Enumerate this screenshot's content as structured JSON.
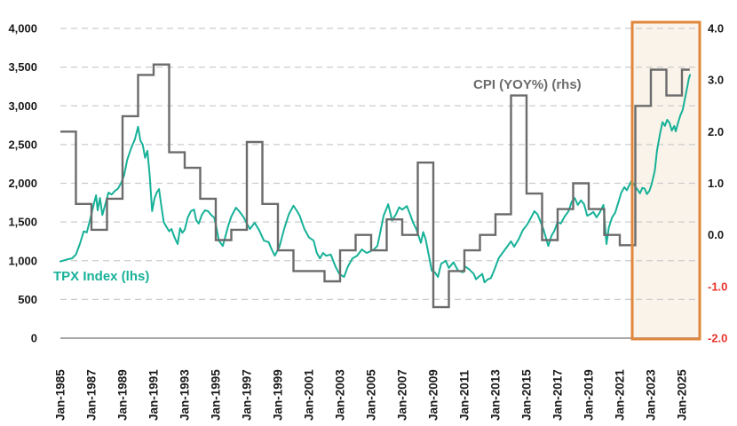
{
  "page": {
    "background": "#ffffff"
  },
  "chart_data": {
    "type": "line",
    "title": "",
    "x_axis": {
      "tick_labels": [
        "Jan-1985",
        "Jan-1987",
        "Jan-1989",
        "Jan-1991",
        "Jan-1993",
        "Jan-1995",
        "Jan-1997",
        "Jan-1999",
        "Jan-2001",
        "Jan-2003",
        "Jan-2005",
        "Jan-2007",
        "Jan-2009",
        "Jan-2011",
        "Jan-2013",
        "Jan-2015",
        "Jan-2017",
        "Jan-2019",
        "Jan-2021",
        "Jan-2023",
        "Jan-2025"
      ],
      "tick_years": [
        1985,
        1987,
        1989,
        1991,
        1993,
        1995,
        1997,
        1999,
        2001,
        2003,
        2005,
        2007,
        2009,
        2011,
        2013,
        2015,
        2017,
        2019,
        2021,
        2023,
        2025
      ],
      "range_years": [
        1985.0,
        2026.17
      ],
      "label_color": "#1a1a1a"
    },
    "left_axis": {
      "label": "TPX Index (lhs)",
      "min": 0,
      "max": 4000,
      "tick_values": [
        0,
        500,
        1000,
        1500,
        2000,
        2500,
        3000,
        3500,
        4000
      ],
      "tick_labels": [
        "0",
        "500",
        "1,000",
        "1,500",
        "2,000",
        "2,500",
        "3,000",
        "3,500",
        "4,000"
      ],
      "label_color": "#17b198",
      "tick_color": "#1a1a1a"
    },
    "right_axis": {
      "label": "CPI (YOY%) (rhs)",
      "min": -2.0,
      "max": 4.0,
      "tick_values": [
        4.0,
        3.0,
        2.0,
        1.0,
        0.0,
        -1.0,
        -2.0
      ],
      "tick_labels": [
        "4.0",
        "3.0",
        "2.0",
        "1.0",
        "0.0",
        "-1.0",
        "-2.0"
      ],
      "label_color": "#6b6b6b",
      "tick_color": "#1a1a1a",
      "negative_tick_color": "#e8332c"
    },
    "grid": {
      "color": "#cccccc",
      "dashed": true
    },
    "axis_line_color": "#a8a8a8",
    "highlight_region": {
      "start_year": 2021.8,
      "end_year": 2026.17,
      "fill": "#faf3e9",
      "border_color": "#e0873c"
    },
    "series": [
      {
        "name": "TPX Index",
        "axis": "left",
        "type": "line",
        "color": "#17b198",
        "stroke_width": 2,
        "points": [
          [
            1985.0,
            990
          ],
          [
            1985.25,
            1005
          ],
          [
            1985.5,
            1020
          ],
          [
            1985.75,
            1030
          ],
          [
            1986.0,
            1080
          ],
          [
            1986.25,
            1215
          ],
          [
            1986.5,
            1380
          ],
          [
            1986.7,
            1365
          ],
          [
            1987.0,
            1600
          ],
          [
            1987.15,
            1730
          ],
          [
            1987.3,
            1845
          ],
          [
            1987.4,
            1650
          ],
          [
            1987.55,
            1810
          ],
          [
            1987.7,
            1590
          ],
          [
            1987.85,
            1700
          ],
          [
            1988.1,
            1880
          ],
          [
            1988.3,
            1855
          ],
          [
            1988.5,
            1900
          ],
          [
            1988.7,
            1930
          ],
          [
            1988.9,
            2000
          ],
          [
            1989.1,
            2100
          ],
          [
            1989.3,
            2300
          ],
          [
            1989.55,
            2450
          ],
          [
            1989.8,
            2570
          ],
          [
            1990.0,
            2730
          ],
          [
            1990.15,
            2550
          ],
          [
            1990.3,
            2500
          ],
          [
            1990.45,
            2330
          ],
          [
            1990.6,
            2420
          ],
          [
            1990.75,
            2100
          ],
          [
            1990.9,
            1640
          ],
          [
            1991.05,
            1800
          ],
          [
            1991.2,
            1880
          ],
          [
            1991.35,
            1925
          ],
          [
            1991.5,
            1700
          ],
          [
            1991.65,
            1500
          ],
          [
            1991.8,
            1445
          ],
          [
            1992.0,
            1380
          ],
          [
            1992.15,
            1410
          ],
          [
            1992.35,
            1300
          ],
          [
            1992.55,
            1215
          ],
          [
            1992.7,
            1420
          ],
          [
            1992.85,
            1360
          ],
          [
            1993.0,
            1400
          ],
          [
            1993.2,
            1560
          ],
          [
            1993.4,
            1640
          ],
          [
            1993.6,
            1660
          ],
          [
            1993.75,
            1520
          ],
          [
            1993.9,
            1480
          ],
          [
            1994.1,
            1590
          ],
          [
            1994.3,
            1650
          ],
          [
            1994.5,
            1640
          ],
          [
            1994.7,
            1590
          ],
          [
            1994.9,
            1555
          ],
          [
            1995.05,
            1420
          ],
          [
            1995.2,
            1260
          ],
          [
            1995.45,
            1190
          ],
          [
            1995.6,
            1300
          ],
          [
            1995.8,
            1450
          ],
          [
            1996.0,
            1570
          ],
          [
            1996.3,
            1685
          ],
          [
            1996.5,
            1640
          ],
          [
            1996.8,
            1560
          ],
          [
            1997.0,
            1480
          ],
          [
            1997.2,
            1410
          ],
          [
            1997.5,
            1490
          ],
          [
            1997.8,
            1390
          ],
          [
            1998.1,
            1260
          ],
          [
            1998.4,
            1240
          ],
          [
            1998.6,
            1145
          ],
          [
            1998.8,
            1065
          ],
          [
            1999.1,
            1180
          ],
          [
            1999.4,
            1410
          ],
          [
            1999.7,
            1600
          ],
          [
            2000.0,
            1710
          ],
          [
            2000.2,
            1650
          ],
          [
            2000.4,
            1580
          ],
          [
            2000.7,
            1410
          ],
          [
            2001.0,
            1300
          ],
          [
            2001.3,
            1260
          ],
          [
            2001.5,
            1100
          ],
          [
            2001.7,
            1030
          ],
          [
            2001.9,
            1100
          ],
          [
            2002.1,
            1065
          ],
          [
            2002.4,
            1080
          ],
          [
            2002.7,
            925
          ],
          [
            2002.95,
            830
          ],
          [
            2003.25,
            790
          ],
          [
            2003.5,
            925
          ],
          [
            2003.8,
            1030
          ],
          [
            2004.1,
            1065
          ],
          [
            2004.4,
            1145
          ],
          [
            2004.7,
            1100
          ],
          [
            2004.95,
            1120
          ],
          [
            2005.2,
            1150
          ],
          [
            2005.4,
            1190
          ],
          [
            2005.6,
            1380
          ],
          [
            2005.8,
            1580
          ],
          [
            2006.0,
            1680
          ],
          [
            2006.1,
            1730
          ],
          [
            2006.35,
            1520
          ],
          [
            2006.6,
            1600
          ],
          [
            2006.8,
            1690
          ],
          [
            2007.0,
            1660
          ],
          [
            2007.3,
            1705
          ],
          [
            2007.5,
            1600
          ],
          [
            2007.7,
            1490
          ],
          [
            2007.9,
            1410
          ],
          [
            2008.2,
            1230
          ],
          [
            2008.35,
            1370
          ],
          [
            2008.5,
            1280
          ],
          [
            2008.75,
            1030
          ],
          [
            2008.9,
            870
          ],
          [
            2009.1,
            850
          ],
          [
            2009.3,
            790
          ],
          [
            2009.5,
            960
          ],
          [
            2009.8,
            1000
          ],
          [
            2010.0,
            905
          ],
          [
            2010.3,
            980
          ],
          [
            2010.6,
            870
          ],
          [
            2010.9,
            850
          ],
          [
            2011.05,
            925
          ],
          [
            2011.3,
            890
          ],
          [
            2011.6,
            830
          ],
          [
            2011.75,
            760
          ],
          [
            2011.9,
            790
          ],
          [
            2012.15,
            830
          ],
          [
            2012.3,
            720
          ],
          [
            2012.5,
            760
          ],
          [
            2012.7,
            775
          ],
          [
            2012.9,
            870
          ],
          [
            2013.2,
            1030
          ],
          [
            2013.45,
            1100
          ],
          [
            2013.75,
            1180
          ],
          [
            2014.0,
            1250
          ],
          [
            2014.2,
            1180
          ],
          [
            2014.5,
            1280
          ],
          [
            2014.75,
            1390
          ],
          [
            2015.05,
            1470
          ],
          [
            2015.3,
            1560
          ],
          [
            2015.5,
            1640
          ],
          [
            2015.7,
            1600
          ],
          [
            2015.9,
            1500
          ],
          [
            2016.1,
            1400
          ],
          [
            2016.4,
            1190
          ],
          [
            2016.6,
            1320
          ],
          [
            2016.8,
            1390
          ],
          [
            2017.0,
            1500
          ],
          [
            2017.2,
            1480
          ],
          [
            2017.45,
            1570
          ],
          [
            2017.7,
            1640
          ],
          [
            2017.9,
            1760
          ],
          [
            2018.1,
            1810
          ],
          [
            2018.3,
            1720
          ],
          [
            2018.5,
            1780
          ],
          [
            2018.7,
            1730
          ],
          [
            2018.9,
            1580
          ],
          [
            2019.1,
            1600
          ],
          [
            2019.3,
            1630
          ],
          [
            2019.5,
            1560
          ],
          [
            2019.7,
            1620
          ],
          [
            2019.95,
            1720
          ],
          [
            2020.14,
            1215
          ],
          [
            2020.3,
            1430
          ],
          [
            2020.5,
            1560
          ],
          [
            2020.7,
            1620
          ],
          [
            2020.9,
            1750
          ],
          [
            2021.1,
            1880
          ],
          [
            2021.3,
            1950
          ],
          [
            2021.45,
            1910
          ],
          [
            2021.6,
            1970
          ],
          [
            2021.75,
            2030
          ],
          [
            2021.9,
            1990
          ],
          [
            2022.1,
            1930
          ],
          [
            2022.3,
            1870
          ],
          [
            2022.45,
            1940
          ],
          [
            2022.6,
            1930
          ],
          [
            2022.75,
            1860
          ],
          [
            2022.9,
            1900
          ],
          [
            2023.05,
            1990
          ],
          [
            2023.25,
            2160
          ],
          [
            2023.4,
            2430
          ],
          [
            2023.6,
            2650
          ],
          [
            2023.75,
            2790
          ],
          [
            2023.9,
            2740
          ],
          [
            2024.05,
            2820
          ],
          [
            2024.2,
            2780
          ],
          [
            2024.35,
            2680
          ],
          [
            2024.5,
            2740
          ],
          [
            2024.6,
            2670
          ],
          [
            2024.75,
            2780
          ],
          [
            2024.9,
            2880
          ],
          [
            2025.05,
            2950
          ],
          [
            2025.2,
            3100
          ],
          [
            2025.35,
            3250
          ],
          [
            2025.45,
            3360
          ],
          [
            2025.52,
            3400
          ]
        ]
      },
      {
        "name": "CPI (YOY%)",
        "axis": "right",
        "type": "step",
        "color": "#6b6b6b",
        "stroke_width": 2.4,
        "end_year": 2025.5,
        "annual": [
          [
            1985,
            2.0
          ],
          [
            1986,
            0.6
          ],
          [
            1987,
            0.1
          ],
          [
            1988,
            0.7
          ],
          [
            1989,
            2.3
          ],
          [
            1990,
            3.1
          ],
          [
            1991,
            3.3
          ],
          [
            1992,
            1.6
          ],
          [
            1993,
            1.3
          ],
          [
            1994,
            0.7
          ],
          [
            1995,
            -0.1
          ],
          [
            1996,
            0.1
          ],
          [
            1997,
            1.8
          ],
          [
            1998,
            0.6
          ],
          [
            1999,
            -0.3
          ],
          [
            2000,
            -0.7
          ],
          [
            2001,
            -0.7
          ],
          [
            2002,
            -0.9
          ],
          [
            2003,
            -0.3
          ],
          [
            2004,
            0.0
          ],
          [
            2005,
            -0.3
          ],
          [
            2006,
            0.3
          ],
          [
            2007,
            0.0
          ],
          [
            2008,
            1.4
          ],
          [
            2009,
            -1.4
          ],
          [
            2010,
            -0.7
          ],
          [
            2011,
            -0.3
          ],
          [
            2012,
            0.0
          ],
          [
            2013,
            0.4
          ],
          [
            2014,
            2.7
          ],
          [
            2015,
            0.8
          ],
          [
            2016,
            -0.1
          ],
          [
            2017,
            0.5
          ],
          [
            2018,
            1.0
          ],
          [
            2019,
            0.5
          ],
          [
            2020,
            0.0
          ],
          [
            2021,
            -0.2
          ],
          [
            2022,
            2.5
          ],
          [
            2023,
            3.2
          ],
          [
            2024,
            2.7
          ],
          [
            2025,
            3.2
          ]
        ]
      }
    ]
  }
}
